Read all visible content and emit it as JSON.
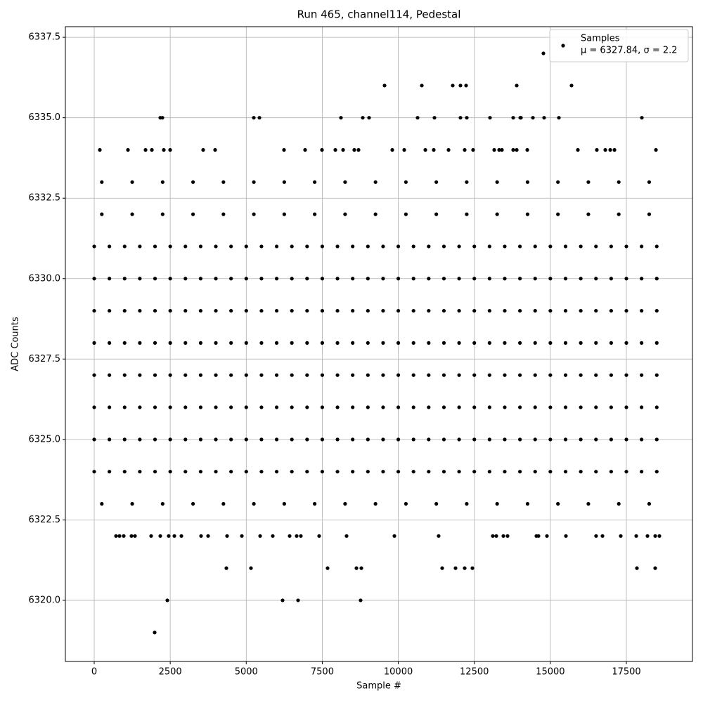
{
  "chart_data": {
    "type": "scatter",
    "title": "Run 465, channel114, Pedestal",
    "x_label": "Sample #",
    "y_label": "ADC Counts",
    "xlim": [
      -948,
      19673
    ],
    "ylim": [
      6318.1,
      6337.83
    ],
    "xticks": [
      0,
      2500,
      5000,
      7500,
      10000,
      12500,
      15000,
      17500
    ],
    "yticks": [
      {
        "value": 6320,
        "label": "6320.0"
      },
      6322.5,
      {
        "value": 6325,
        "label": "6325.0"
      },
      6327.5,
      {
        "value": 6330,
        "label": "6330.0"
      },
      6332.5,
      {
        "value": 6335,
        "label": "6335.0"
      },
      6337.5
    ],
    "grid": true,
    "legend_position": "upper right",
    "legend_note": "μ = 6327.84, σ = 2.2",
    "series": [
      {
        "name": "Samples",
        "color": "#000000",
        "x": [
          0,
          500,
          1000,
          1500,
          2000,
          2500,
          3000,
          3500,
          4000,
          4500,
          5000,
          5500,
          6000,
          6500,
          7000,
          7500,
          8000,
          8500,
          9000,
          9500,
          10000,
          10500,
          11000,
          11500,
          12000,
          12500,
          13000,
          13500,
          14000,
          14500,
          15000,
          15500,
          16000,
          16500,
          17000,
          17500,
          18000,
          18500,
          0,
          500,
          1000,
          1500,
          2000,
          2500,
          3000,
          3500,
          4000,
          4500,
          5000,
          5500,
          6000,
          6500,
          7000,
          7500,
          8000,
          8500,
          9000,
          9500,
          10000,
          10500,
          11000,
          11500,
          12000,
          12500,
          13000,
          13500,
          14000,
          14500,
          15000,
          15500,
          16000,
          16500,
          17000,
          17500,
          18000,
          18500,
          0,
          500,
          1000,
          1500,
          2000,
          2500,
          3000,
          3500,
          4000,
          4500,
          5000,
          5500,
          6000,
          6500,
          7000,
          7500,
          8000,
          8500,
          9000,
          9500,
          10000,
          10500,
          11000,
          11500,
          12000,
          12500,
          13000,
          13500,
          14000,
          14500,
          15000,
          15500,
          16000,
          16500,
          17000,
          17500,
          18000,
          18500,
          0,
          500,
          1000,
          1500,
          2000,
          2500,
          3000,
          3500,
          4000,
          4500,
          5000,
          5500,
          6000,
          6500,
          7000,
          7500,
          8000,
          8500,
          9000,
          9500,
          10000,
          10500,
          11000,
          11500,
          12000,
          12500,
          13000,
          13500,
          14000,
          14500,
          15000,
          15500,
          16000,
          16500,
          17000,
          17500,
          18000,
          18500,
          0,
          500,
          1000,
          1500,
          2000,
          2500,
          3000,
          3500,
          4000,
          4500,
          5000,
          5500,
          6000,
          6500,
          7000,
          7500,
          8000,
          8500,
          9000,
          9500,
          10000,
          10500,
          11000,
          11500,
          12000,
          12500,
          13000,
          13500,
          14000,
          14500,
          15000,
          15500,
          16000,
          16500,
          17000,
          17500,
          18000,
          18500,
          0,
          500,
          1000,
          1500,
          2000,
          2500,
          3000,
          3500,
          4000,
          4500,
          5000,
          5500,
          6000,
          6500,
          7000,
          7500,
          8000,
          8500,
          9000,
          9500,
          10000,
          10500,
          11000,
          11500,
          12000,
          12500,
          13000,
          13500,
          14000,
          14500,
          15000,
          15500,
          16000,
          16500,
          17000,
          17500,
          18000,
          18500,
          0,
          500,
          1000,
          1500,
          2000,
          2500,
          3000,
          3500,
          4000,
          4500,
          5000,
          5500,
          6000,
          6500,
          7000,
          7500,
          8000,
          8500,
          9000,
          9500,
          10000,
          10500,
          11000,
          11500,
          12000,
          12500,
          13000,
          13500,
          14000,
          14500,
          15000,
          15500,
          16000,
          16500,
          17000,
          17500,
          18000,
          18500,
          0,
          500,
          1000,
          1500,
          2000,
          2500,
          3000,
          3500,
          4000,
          4500,
          5000,
          5500,
          6000,
          6500,
          7000,
          7500,
          8000,
          8500,
          9000,
          9500,
          10000,
          10500,
          11000,
          11500,
          12000,
          12500,
          13000,
          13500,
          14000,
          14500,
          15000,
          15500,
          16000,
          16500,
          17000,
          17500,
          18000,
          18500,
          250,
          1250,
          2250,
          3250,
          4250,
          5250,
          6250,
          7250,
          8250,
          9250,
          10250,
          11250,
          12250,
          13250,
          14250,
          15250,
          16250,
          17250,
          18250,
          250,
          1250,
          2250,
          3250,
          4250,
          5250,
          6250,
          7250,
          8250,
          9250,
          10250,
          11250,
          12250,
          13250,
          14250,
          15250,
          16250,
          17250,
          18250,
          250,
          1250,
          2250,
          3250,
          4250,
          5250,
          6250,
          7250,
          8250,
          9250,
          10250,
          11250,
          12250,
          13250,
          14250,
          15250,
          16250,
          17250,
          18250,
          14772,
          9548,
          10773,
          11790,
          12044,
          12229,
          13894,
          15697,
          2173,
          2243,
          5248,
          5433,
          8114,
          8831,
          9039,
          10634,
          11189,
          12044,
          12252,
          13015,
          13778,
          14010,
          14033,
          14426,
          14795,
          15281,
          18009,
          185,
          1110,
          1688,
          1896,
          2289,
          2497,
          3583,
          3976,
          6242,
          6935,
          7490,
          7929,
          8184,
          8553,
          8692,
          9802,
          10195,
          10889,
          11166,
          11652,
          12183,
          12460,
          13154,
          13316,
          13408,
          13778,
          13894,
          14241,
          15905,
          16529,
          16807,
          16969,
          17108,
          18472,
          717,
          832,
          971,
          1225,
          1341,
          1872,
          2173,
          2450,
          2635,
          2867,
          3514,
          3745,
          4369,
          4855,
          5456,
          5872,
          6427,
          6658,
          6796,
          7397,
          8299,
          9871,
          11327,
          13107,
          13223,
          13454,
          13593,
          14541,
          14610,
          14888,
          15512,
          16504,
          16714,
          17315,
          17824,
          18193,
          18448,
          18586,
          4346,
          5155,
          7675,
          8623,
          8785,
          11443,
          11882,
          12183,
          12437,
          17847,
          18448,
          2404,
          6195,
          6704,
          8761,
          1988
        ],
        "values": [
          6324,
          6324,
          6324,
          6324,
          6324,
          6324,
          6324,
          6324,
          6324,
          6324,
          6324,
          6324,
          6324,
          6324,
          6324,
          6324,
          6324,
          6324,
          6324,
          6324,
          6324,
          6324,
          6324,
          6324,
          6324,
          6324,
          6324,
          6324,
          6324,
          6324,
          6324,
          6324,
          6324,
          6324,
          6324,
          6324,
          6324,
          6324,
          6325,
          6325,
          6325,
          6325,
          6325,
          6325,
          6325,
          6325,
          6325,
          6325,
          6325,
          6325,
          6325,
          6325,
          6325,
          6325,
          6325,
          6325,
          6325,
          6325,
          6325,
          6325,
          6325,
          6325,
          6325,
          6325,
          6325,
          6325,
          6325,
          6325,
          6325,
          6325,
          6325,
          6325,
          6325,
          6325,
          6325,
          6325,
          6326,
          6326,
          6326,
          6326,
          6326,
          6326,
          6326,
          6326,
          6326,
          6326,
          6326,
          6326,
          6326,
          6326,
          6326,
          6326,
          6326,
          6326,
          6326,
          6326,
          6326,
          6326,
          6326,
          6326,
          6326,
          6326,
          6326,
          6326,
          6326,
          6326,
          6326,
          6326,
          6326,
          6326,
          6326,
          6326,
          6326,
          6326,
          6327,
          6327,
          6327,
          6327,
          6327,
          6327,
          6327,
          6327,
          6327,
          6327,
          6327,
          6327,
          6327,
          6327,
          6327,
          6327,
          6327,
          6327,
          6327,
          6327,
          6327,
          6327,
          6327,
          6327,
          6327,
          6327,
          6327,
          6327,
          6327,
          6327,
          6327,
          6327,
          6327,
          6327,
          6327,
          6327,
          6327,
          6327,
          6328,
          6328,
          6328,
          6328,
          6328,
          6328,
          6328,
          6328,
          6328,
          6328,
          6328,
          6328,
          6328,
          6328,
          6328,
          6328,
          6328,
          6328,
          6328,
          6328,
          6328,
          6328,
          6328,
          6328,
          6328,
          6328,
          6328,
          6328,
          6328,
          6328,
          6328,
          6328,
          6328,
          6328,
          6328,
          6328,
          6328,
          6328,
          6329,
          6329,
          6329,
          6329,
          6329,
          6329,
          6329,
          6329,
          6329,
          6329,
          6329,
          6329,
          6329,
          6329,
          6329,
          6329,
          6329,
          6329,
          6329,
          6329,
          6329,
          6329,
          6329,
          6329,
          6329,
          6329,
          6329,
          6329,
          6329,
          6329,
          6329,
          6329,
          6329,
          6329,
          6329,
          6329,
          6329,
          6329,
          6330,
          6330,
          6330,
          6330,
          6330,
          6330,
          6330,
          6330,
          6330,
          6330,
          6330,
          6330,
          6330,
          6330,
          6330,
          6330,
          6330,
          6330,
          6330,
          6330,
          6330,
          6330,
          6330,
          6330,
          6330,
          6330,
          6330,
          6330,
          6330,
          6330,
          6330,
          6330,
          6330,
          6330,
          6330,
          6330,
          6330,
          6330,
          6331,
          6331,
          6331,
          6331,
          6331,
          6331,
          6331,
          6331,
          6331,
          6331,
          6331,
          6331,
          6331,
          6331,
          6331,
          6331,
          6331,
          6331,
          6331,
          6331,
          6331,
          6331,
          6331,
          6331,
          6331,
          6331,
          6331,
          6331,
          6331,
          6331,
          6331,
          6331,
          6331,
          6331,
          6331,
          6331,
          6331,
          6331,
          6323,
          6323,
          6323,
          6323,
          6323,
          6323,
          6323,
          6323,
          6323,
          6323,
          6323,
          6323,
          6323,
          6323,
          6323,
          6323,
          6323,
          6323,
          6323,
          6332,
          6332,
          6332,
          6332,
          6332,
          6332,
          6332,
          6332,
          6332,
          6332,
          6332,
          6332,
          6332,
          6332,
          6332,
          6332,
          6332,
          6332,
          6332,
          6333,
          6333,
          6333,
          6333,
          6333,
          6333,
          6333,
          6333,
          6333,
          6333,
          6333,
          6333,
          6333,
          6333,
          6333,
          6333,
          6333,
          6333,
          6333,
          6337,
          6336,
          6336,
          6336,
          6336,
          6336,
          6336,
          6336,
          6335,
          6335,
          6335,
          6335,
          6335,
          6335,
          6335,
          6335,
          6335,
          6335,
          6335,
          6335,
          6335,
          6335,
          6335,
          6335,
          6335,
          6335,
          6335,
          6334,
          6334,
          6334,
          6334,
          6334,
          6334,
          6334,
          6334,
          6334,
          6334,
          6334,
          6334,
          6334,
          6334,
          6334,
          6334,
          6334,
          6334,
          6334,
          6334,
          6334,
          6334,
          6334,
          6334,
          6334,
          6334,
          6334,
          6334,
          6334,
          6334,
          6334,
          6334,
          6334,
          6334,
          6322,
          6322,
          6322,
          6322,
          6322,
          6322,
          6322,
          6322,
          6322,
          6322,
          6322,
          6322,
          6322,
          6322,
          6322,
          6322,
          6322,
          6322,
          6322,
          6322,
          6322,
          6322,
          6322,
          6322,
          6322,
          6322,
          6322,
          6322,
          6322,
          6322,
          6322,
          6322,
          6322,
          6322,
          6322,
          6322,
          6322,
          6322,
          6321,
          6321,
          6321,
          6321,
          6321,
          6321,
          6321,
          6321,
          6321,
          6321,
          6321,
          6320,
          6320,
          6320,
          6320,
          6319
        ]
      }
    ]
  }
}
